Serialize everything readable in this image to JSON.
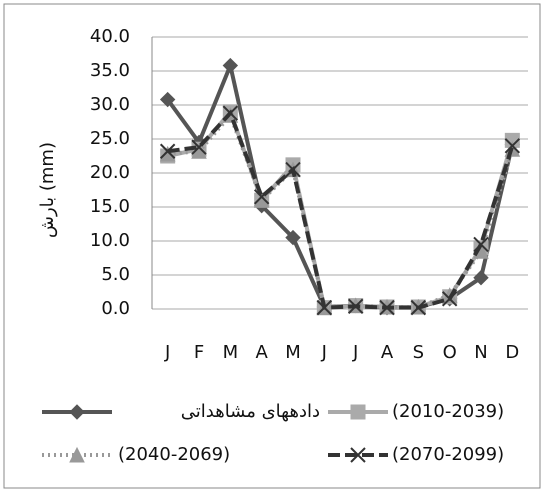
{
  "chart_data": {
    "type": "line",
    "y_label": "بارش (mm)",
    "categories": [
      "J",
      "F",
      "M",
      "A",
      "M",
      "J",
      "J",
      "A",
      "S",
      "O",
      "N",
      "D"
    ],
    "series": [
      {
        "name": "دادههای مشاهداتی",
        "color": "#555555",
        "marker": "diamond",
        "dash": "solid",
        "values": [
          30.8,
          24.5,
          35.8,
          15.2,
          10.5,
          0.3,
          0.5,
          0.2,
          0.3,
          1.5,
          4.6,
          24.2
        ]
      },
      {
        "name": "(2010-2039)",
        "color": "#aaaaaa",
        "marker": "square",
        "dash": "solid",
        "values": [
          22.5,
          23.5,
          29.0,
          16.0,
          21.2,
          0.2,
          0.5,
          0.3,
          0.3,
          1.8,
          9.0,
          24.8
        ]
      },
      {
        "name": "(2040-2069)",
        "color": "#999999",
        "marker": "triangle",
        "dash": "dotted",
        "values": [
          22.8,
          23.2,
          28.5,
          16.0,
          20.5,
          0.2,
          0.5,
          0.3,
          0.3,
          2.0,
          8.5,
          23.5
        ]
      },
      {
        "name": "(2070-2099)",
        "color": "#333333",
        "marker": "x",
        "dash": "dashed",
        "values": [
          23.2,
          23.8,
          28.8,
          16.5,
          20.5,
          0.2,
          0.4,
          0.2,
          0.2,
          1.5,
          9.5,
          24.0
        ]
      }
    ],
    "ylim": [
      0,
      40
    ],
    "yticks": [
      {
        "value": 0,
        "label": "0.0"
      },
      {
        "value": 5,
        "label": "5.0"
      },
      {
        "value": 10,
        "label": "10.0"
      },
      {
        "value": 15,
        "label": "15.0"
      },
      {
        "value": 20,
        "label": "20.0"
      },
      {
        "value": 25,
        "label": "25.0"
      },
      {
        "value": 30,
        "label": "30.0"
      },
      {
        "value": 35,
        "label": "35.0"
      },
      {
        "value": 40,
        "label": "40.0"
      }
    ],
    "grid": true
  }
}
